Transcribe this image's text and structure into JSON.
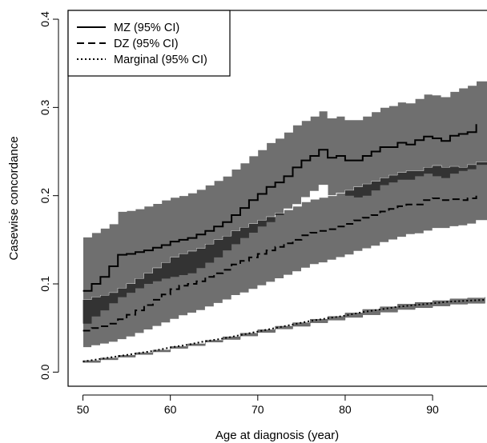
{
  "chart_data": {
    "type": "line",
    "title": "",
    "xlabel": "Age at diagnosis (year)",
    "ylabel": "Casewise concordance",
    "xlim": [
      48.3,
      96.5
    ],
    "ylim": [
      -0.016,
      0.41
    ],
    "xticks": [
      50,
      60,
      70,
      80,
      90
    ],
    "yticks": [
      0.0,
      0.1,
      0.2,
      0.3,
      0.4
    ],
    "xtick_labels": [
      "50",
      "60",
      "70",
      "80",
      "90"
    ],
    "ytick_labels": [
      "0.0",
      "0.1",
      "0.2",
      "0.3",
      "0.4"
    ],
    "grid": false,
    "legend_position": "top-left",
    "colors": {
      "band": "#6f6f6f",
      "band_overlap": "#333333",
      "line": "#000000"
    },
    "series": [
      {
        "name": "MZ (95% CI)",
        "line_style": "solid",
        "x": [
          50,
          51,
          52,
          53,
          54,
          55,
          56,
          57,
          58,
          59,
          60,
          61,
          62,
          63,
          64,
          65,
          66,
          67,
          68,
          69,
          70,
          71,
          72,
          73,
          74,
          75,
          76,
          77,
          78,
          79,
          80,
          81,
          82,
          83,
          84,
          85,
          86,
          87,
          88,
          89,
          90,
          91,
          92,
          93,
          94,
          95
        ],
        "y": [
          0.092,
          0.1,
          0.108,
          0.12,
          0.133,
          0.134,
          0.136,
          0.138,
          0.141,
          0.144,
          0.148,
          0.15,
          0.152,
          0.156,
          0.16,
          0.165,
          0.17,
          0.178,
          0.186,
          0.195,
          0.202,
          0.21,
          0.215,
          0.222,
          0.232,
          0.24,
          0.245,
          0.252,
          0.243,
          0.245,
          0.24,
          0.24,
          0.245,
          0.25,
          0.255,
          0.255,
          0.26,
          0.258,
          0.263,
          0.267,
          0.265,
          0.262,
          0.268,
          0.27,
          0.272,
          0.281
        ],
        "ci_lower": [
          0.055,
          0.063,
          0.07,
          0.078,
          0.085,
          0.09,
          0.095,
          0.1,
          0.103,
          0.106,
          0.108,
          0.11,
          0.112,
          0.118,
          0.124,
          0.13,
          0.138,
          0.145,
          0.152,
          0.158,
          0.165,
          0.17,
          0.178,
          0.185,
          0.19,
          0.198,
          0.205,
          0.212,
          0.2,
          0.203,
          0.2,
          0.198,
          0.2,
          0.206,
          0.212,
          0.215,
          0.218,
          0.218,
          0.222,
          0.225,
          0.222,
          0.22,
          0.225,
          0.228,
          0.23,
          0.235
        ],
        "ci_upper": [
          0.153,
          0.158,
          0.163,
          0.168,
          0.182,
          0.183,
          0.185,
          0.188,
          0.191,
          0.195,
          0.198,
          0.2,
          0.203,
          0.207,
          0.212,
          0.217,
          0.222,
          0.23,
          0.237,
          0.245,
          0.252,
          0.26,
          0.265,
          0.272,
          0.28,
          0.285,
          0.29,
          0.296,
          0.288,
          0.29,
          0.286,
          0.286,
          0.29,
          0.295,
          0.3,
          0.302,
          0.306,
          0.305,
          0.31,
          0.315,
          0.314,
          0.312,
          0.318,
          0.322,
          0.325,
          0.33
        ]
      },
      {
        "name": "DZ (95% CI)",
        "line_style": "dashed",
        "x": [
          50,
          51,
          52,
          53,
          54,
          55,
          56,
          57,
          58,
          59,
          60,
          61,
          62,
          63,
          64,
          65,
          66,
          67,
          68,
          69,
          70,
          71,
          72,
          73,
          74,
          75,
          76,
          77,
          78,
          79,
          80,
          81,
          82,
          83,
          84,
          85,
          86,
          87,
          88,
          89,
          90,
          91,
          92,
          93,
          94,
          95
        ],
        "y": [
          0.047,
          0.05,
          0.052,
          0.055,
          0.06,
          0.065,
          0.07,
          0.076,
          0.082,
          0.088,
          0.094,
          0.098,
          0.1,
          0.103,
          0.108,
          0.112,
          0.116,
          0.122,
          0.126,
          0.13,
          0.134,
          0.138,
          0.142,
          0.146,
          0.15,
          0.155,
          0.158,
          0.16,
          0.162,
          0.165,
          0.168,
          0.172,
          0.175,
          0.178,
          0.182,
          0.185,
          0.188,
          0.19,
          0.19,
          0.195,
          0.197,
          0.195,
          0.196,
          0.195,
          0.197,
          0.2
        ],
        "ci_lower": [
          0.028,
          0.03,
          0.032,
          0.034,
          0.037,
          0.04,
          0.044,
          0.048,
          0.052,
          0.056,
          0.06,
          0.064,
          0.067,
          0.07,
          0.074,
          0.078,
          0.082,
          0.087,
          0.09,
          0.094,
          0.098,
          0.102,
          0.106,
          0.11,
          0.114,
          0.118,
          0.122,
          0.124,
          0.127,
          0.13,
          0.133,
          0.137,
          0.14,
          0.143,
          0.147,
          0.15,
          0.153,
          0.156,
          0.157,
          0.16,
          0.163,
          0.163,
          0.165,
          0.166,
          0.168,
          0.172
        ],
        "ci_upper": [
          0.082,
          0.085,
          0.087,
          0.09,
          0.095,
          0.1,
          0.106,
          0.112,
          0.118,
          0.124,
          0.13,
          0.134,
          0.137,
          0.14,
          0.145,
          0.15,
          0.154,
          0.16,
          0.164,
          0.168,
          0.172,
          0.176,
          0.18,
          0.184,
          0.188,
          0.193,
          0.196,
          0.198,
          0.2,
          0.203,
          0.206,
          0.21,
          0.213,
          0.216,
          0.22,
          0.223,
          0.226,
          0.228,
          0.228,
          0.232,
          0.234,
          0.232,
          0.233,
          0.232,
          0.235,
          0.238
        ]
      },
      {
        "name": "Marginal (95% CI)",
        "line_style": "dotted",
        "x": [
          50,
          52,
          54,
          56,
          58,
          60,
          62,
          64,
          66,
          68,
          70,
          72,
          74,
          76,
          78,
          80,
          82,
          84,
          86,
          88,
          90,
          92,
          94,
          96
        ],
        "y": [
          0.012,
          0.015,
          0.018,
          0.021,
          0.024,
          0.028,
          0.031,
          0.035,
          0.038,
          0.042,
          0.046,
          0.05,
          0.054,
          0.058,
          0.061,
          0.064,
          0.068,
          0.071,
          0.074,
          0.076,
          0.078,
          0.08,
          0.081,
          0.082
        ],
        "ci_lower": [
          0.011,
          0.014,
          0.017,
          0.02,
          0.023,
          0.027,
          0.03,
          0.034,
          0.037,
          0.041,
          0.045,
          0.049,
          0.052,
          0.056,
          0.059,
          0.062,
          0.065,
          0.068,
          0.071,
          0.073,
          0.075,
          0.077,
          0.078,
          0.079
        ],
        "ci_upper": [
          0.013,
          0.016,
          0.019,
          0.022,
          0.025,
          0.029,
          0.032,
          0.036,
          0.04,
          0.044,
          0.048,
          0.052,
          0.056,
          0.06,
          0.063,
          0.067,
          0.071,
          0.074,
          0.077,
          0.079,
          0.081,
          0.083,
          0.084,
          0.085
        ]
      }
    ]
  }
}
